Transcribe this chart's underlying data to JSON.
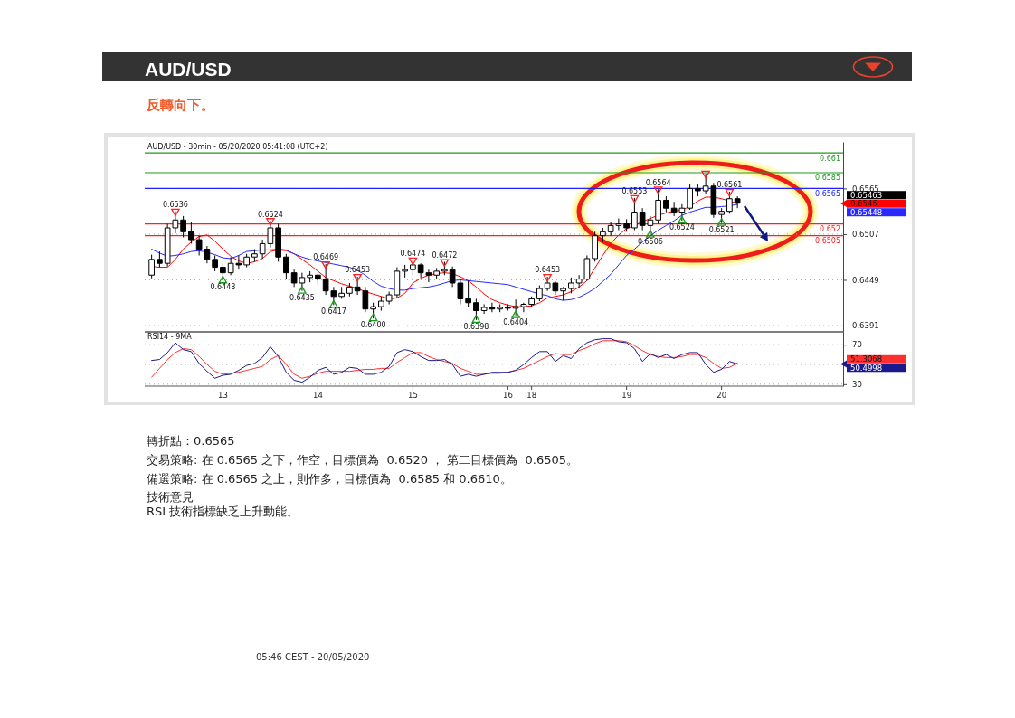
{
  "chart_data": [
    {
      "type": "candlestick",
      "title": "AUD/USD",
      "subtitle": "反轉向下。",
      "categories": [
        null,
        null,
        null,
        null,
        null,
        null,
        null,
        null,
        null,
        null,
        null,
        null,
        null,
        null,
        null,
        null,
        null,
        null,
        null,
        null,
        null,
        null,
        null,
        null,
        null,
        null,
        null,
        null,
        null,
        null,
        null,
        null,
        null,
        null,
        null,
        null,
        null,
        null,
        null,
        null,
        null,
        null,
        null,
        null,
        null,
        null,
        null,
        null,
        null,
        null,
        null,
        null,
        null,
        null,
        null,
        null,
        null,
        null,
        null,
        null,
        null,
        null,
        null,
        null,
        null,
        null,
        null,
        null,
        null,
        null,
        null,
        null,
        null,
        null,
        null
      ],
      "ohlc": [
        [
          0.6455,
          0.6481,
          0.6451,
          0.6475
        ],
        [
          0.6475,
          0.6485,
          0.6465,
          0.647
        ],
        [
          0.647,
          0.652,
          0.6466,
          0.6515
        ],
        [
          0.6515,
          0.6536,
          0.6508,
          0.6525
        ],
        [
          0.6525,
          0.653,
          0.6503,
          0.651
        ],
        [
          0.651,
          0.6522,
          0.6495,
          0.65
        ],
        [
          0.65,
          0.6505,
          0.648,
          0.6488
        ],
        [
          0.6488,
          0.6492,
          0.647,
          0.6475
        ],
        [
          0.6475,
          0.648,
          0.646,
          0.6465
        ],
        [
          0.6465,
          0.647,
          0.6448,
          0.6458
        ],
        [
          0.6458,
          0.6478,
          0.6455,
          0.647
        ],
        [
          0.647,
          0.648,
          0.6462,
          0.6468
        ],
        [
          0.6468,
          0.6482,
          0.6465,
          0.6478
        ],
        [
          0.6478,
          0.6488,
          0.6472,
          0.6482
        ],
        [
          0.6482,
          0.65,
          0.6476,
          0.6495
        ],
        [
          0.6495,
          0.6524,
          0.649,
          0.6515
        ],
        [
          0.6515,
          0.652,
          0.6472,
          0.6478
        ],
        [
          0.6478,
          0.6482,
          0.645,
          0.6458
        ],
        [
          0.6458,
          0.6462,
          0.644,
          0.6445
        ],
        [
          0.6445,
          0.6458,
          0.6435,
          0.6452
        ],
        [
          0.6452,
          0.646,
          0.6446,
          0.6455
        ],
        [
          0.6455,
          0.6458,
          0.6443,
          0.645
        ],
        [
          0.645,
          0.6469,
          0.643,
          0.6435
        ],
        [
          0.6435,
          0.644,
          0.6417,
          0.6428
        ],
        [
          0.6428,
          0.644,
          0.6425,
          0.6432
        ],
        [
          0.6432,
          0.6445,
          0.6428,
          0.644
        ],
        [
          0.644,
          0.6453,
          0.643,
          0.6435
        ],
        [
          0.6435,
          0.644,
          0.6408,
          0.6412
        ],
        [
          0.6412,
          0.642,
          0.64,
          0.6415
        ],
        [
          0.6415,
          0.6428,
          0.641,
          0.6422
        ],
        [
          0.6422,
          0.6434,
          0.6418,
          0.643
        ],
        [
          0.643,
          0.6465,
          0.6426,
          0.646
        ],
        [
          0.646,
          0.6468,
          0.6452,
          0.6462
        ],
        [
          0.6462,
          0.6474,
          0.6455,
          0.6468
        ],
        [
          0.6468,
          0.647,
          0.6452,
          0.6458
        ],
        [
          0.6458,
          0.6462,
          0.6446,
          0.6455
        ],
        [
          0.6455,
          0.6464,
          0.645,
          0.646
        ],
        [
          0.646,
          0.6472,
          0.6455,
          0.6462
        ],
        [
          0.6462,
          0.6466,
          0.644,
          0.6445
        ],
        [
          0.6445,
          0.645,
          0.6418,
          0.6425
        ],
        [
          0.6425,
          0.6448,
          0.6415,
          0.642
        ],
        [
          0.642,
          0.6425,
          0.6398,
          0.641
        ],
        [
          0.641,
          0.6418,
          0.6406,
          0.6414
        ],
        [
          0.6414,
          0.642,
          0.6408,
          0.6412
        ],
        [
          0.6412,
          0.6418,
          0.6408,
          0.6414
        ],
        [
          0.6414,
          0.6418,
          0.641,
          0.6413
        ],
        [
          0.6413,
          0.6424,
          0.6404,
          0.6415
        ],
        [
          0.6415,
          0.642,
          0.6408,
          0.6418
        ],
        [
          0.6418,
          0.6428,
          0.6414,
          0.6425
        ],
        [
          0.6425,
          0.6442,
          0.6422,
          0.6438
        ],
        [
          0.6438,
          0.6453,
          0.6435,
          0.6445
        ],
        [
          0.6445,
          0.6447,
          0.643,
          0.6435
        ],
        [
          0.6435,
          0.644,
          0.6423,
          0.6438
        ],
        [
          0.6438,
          0.6452,
          0.6432,
          0.6445
        ],
        [
          0.6445,
          0.6455,
          0.6438,
          0.645
        ],
        [
          0.645,
          0.648,
          0.6448,
          0.6476
        ],
        [
          0.6476,
          0.651,
          0.6472,
          0.6505
        ],
        [
          0.6505,
          0.6515,
          0.6497,
          0.651
        ],
        [
          0.651,
          0.6522,
          0.6505,
          0.6518
        ],
        [
          0.6518,
          0.6527,
          0.6512,
          0.652
        ],
        [
          0.652,
          0.6526,
          0.651,
          0.6515
        ],
        [
          0.6515,
          0.6553,
          0.6512,
          0.6535
        ],
        [
          0.6535,
          0.654,
          0.6512,
          0.6518
        ],
        [
          0.6518,
          0.653,
          0.6506,
          0.6525
        ],
        [
          0.6525,
          0.6564,
          0.652,
          0.655
        ],
        [
          0.655,
          0.6555,
          0.6535,
          0.654
        ],
        [
          0.654,
          0.6548,
          0.653,
          0.6535
        ],
        [
          0.6535,
          0.6545,
          0.6524,
          0.654
        ],
        [
          0.654,
          0.6571,
          0.6538,
          0.6565
        ],
        [
          0.6565,
          0.657,
          0.6555,
          0.6562
        ],
        [
          0.6562,
          0.6584,
          0.6558,
          0.6568
        ],
        [
          0.6568,
          0.6572,
          0.6528,
          0.6532
        ],
        [
          0.6532,
          0.654,
          0.6521,
          0.6536
        ],
        [
          0.6536,
          0.6561,
          0.6533,
          0.6552
        ],
        [
          0.6552,
          0.6555,
          0.654,
          0.65463
        ]
      ],
      "color": "#000000",
      "series": [
        {
          "type": "line",
          "color": "#ff0000",
          "values": [
            0.6466,
            0.6465,
            0.6465,
            0.6475,
            0.6488,
            0.6497,
            0.6504,
            0.6506,
            0.6498,
            0.6488,
            0.6479,
            0.6473,
            0.647,
            0.6472,
            0.6476,
            0.6485,
            0.6487,
            0.6486,
            0.6482,
            0.6475,
            0.6468,
            0.646,
            0.6452,
            0.6448,
            0.6444,
            0.6441,
            0.6438,
            0.6434,
            0.6431,
            0.6428,
            0.6425,
            0.6426,
            0.6432,
            0.6445,
            0.6451,
            0.6455,
            0.6457,
            0.6458,
            0.6457,
            0.6453,
            0.6448,
            0.644,
            0.6431,
            0.6424,
            0.642,
            0.6417,
            0.6415,
            0.6415,
            0.6416,
            0.642,
            0.6426,
            0.6428,
            0.643,
            0.6434,
            0.644,
            0.6448,
            0.6464,
            0.648,
            0.6495,
            0.6506,
            0.6514,
            0.6518,
            0.6523,
            0.6527,
            0.6531,
            0.6534,
            0.6536,
            0.6538,
            0.6542,
            0.6549,
            0.6554,
            0.6554,
            0.6552,
            0.6549,
            0.6546
          ]
        },
        {
          "type": "line",
          "color": "#2828ff",
          "values": [
            0.6488,
            0.6483,
            0.6479,
            0.648,
            0.6482,
            0.6485,
            0.6486,
            0.6484,
            0.6481,
            0.6477,
            0.6476,
            0.648,
            0.6485,
            0.6486,
            0.6487,
            0.6487,
            0.6488,
            0.6487,
            0.6482,
            0.6478,
            0.6475,
            0.6473,
            0.6471,
            0.6469,
            0.6467,
            0.6465,
            0.6461,
            0.6455,
            0.6447,
            0.6441,
            0.6438,
            0.6436,
            0.6436,
            0.6438,
            0.6439,
            0.644,
            0.6442,
            0.6445,
            0.6448,
            0.6449,
            0.6448,
            0.6447,
            0.6446,
            0.6445,
            0.6444,
            0.6443,
            0.644,
            0.6437,
            0.6434,
            0.6431,
            0.6429,
            0.6425,
            0.6423,
            0.6424,
            0.6427,
            0.6432,
            0.6438,
            0.6447,
            0.6456,
            0.6468,
            0.648,
            0.6488,
            0.6497,
            0.6505,
            0.6512,
            0.6518,
            0.6524,
            0.6531,
            0.6535,
            0.6538,
            0.6541,
            0.6541,
            0.6542,
            0.6543,
            0.65448
          ]
        },
        {
          "type": "scatter",
          "marker": "triangle",
          "color": "#ff2020",
          "values": [
            null,
            null,
            null,
            0.6536,
            null,
            null,
            null,
            null,
            null,
            null,
            null,
            null,
            null,
            null,
            null,
            0.6524,
            null,
            null,
            null,
            null,
            null,
            null,
            0.6469,
            null,
            null,
            null,
            0.6453,
            null,
            null,
            null,
            null,
            null,
            null,
            0.6474,
            null,
            null,
            null,
            0.6472,
            null,
            null,
            null,
            null,
            null,
            null,
            null,
            null,
            null,
            null,
            null,
            null,
            0.6453,
            null,
            null,
            null,
            null,
            null,
            null,
            null,
            null,
            null,
            null,
            0.6553,
            null,
            null,
            0.6564,
            null,
            null,
            null,
            null,
            null,
            0.6584,
            null,
            null,
            0.6561,
            null
          ],
          "value_labels": [
            null,
            null,
            null,
            "0.6536",
            null,
            null,
            null,
            null,
            null,
            null,
            null,
            null,
            null,
            null,
            null,
            "0.6524",
            null,
            null,
            null,
            null,
            null,
            null,
            "0.6469",
            null,
            null,
            null,
            "0.6453",
            null,
            null,
            null,
            null,
            null,
            null,
            "0.6474",
            null,
            null,
            null,
            "0.6472",
            null,
            null,
            null,
            null,
            null,
            null,
            null,
            null,
            null,
            null,
            null,
            null,
            "0.6453",
            null,
            null,
            null,
            null,
            null,
            null,
            null,
            null,
            null,
            null,
            "0.6553",
            null,
            null,
            "0.6564",
            null,
            null,
            null,
            null,
            null,
            null,
            null,
            null,
            "0.6561",
            null
          ]
        },
        {
          "type": "scatter",
          "marker": "triangle",
          "color": "#1a9a1a",
          "values": [
            null,
            null,
            null,
            null,
            null,
            null,
            null,
            null,
            null,
            0.6448,
            null,
            null,
            null,
            null,
            null,
            null,
            null,
            null,
            null,
            0.6435,
            null,
            null,
            null,
            0.6417,
            null,
            null,
            null,
            null,
            0.64,
            null,
            null,
            null,
            null,
            null,
            null,
            null,
            null,
            null,
            null,
            null,
            null,
            0.6398,
            null,
            null,
            null,
            null,
            0.6404,
            null,
            null,
            null,
            null,
            null,
            null,
            null,
            null,
            null,
            null,
            null,
            null,
            null,
            null,
            null,
            null,
            0.6506,
            null,
            null,
            null,
            0.6524,
            null,
            null,
            null,
            null,
            0.6521,
            null,
            null
          ],
          "value_labels": [
            null,
            null,
            null,
            null,
            null,
            null,
            null,
            null,
            null,
            "0.6448",
            null,
            null,
            null,
            null,
            null,
            null,
            null,
            null,
            null,
            "0.6435",
            null,
            null,
            null,
            "0.6417",
            null,
            null,
            null,
            null,
            "0.6400",
            null,
            null,
            null,
            null,
            null,
            null,
            null,
            null,
            null,
            null,
            null,
            null,
            "0.6398",
            null,
            null,
            null,
            null,
            "0.6404",
            null,
            null,
            null,
            null,
            null,
            null,
            null,
            null,
            null,
            null,
            null,
            null,
            null,
            null,
            null,
            null,
            "0.6506",
            null,
            null,
            null,
            "0.6524",
            null,
            null,
            null,
            null,
            "0.6521",
            null,
            null
          ]
        }
      ],
      "ylim": [
        0.6383,
        0.6624
      ],
      "yticks": [
        0.6565,
        0.6507,
        0.6449,
        0.6391
      ],
      "grid": "y",
      "ref_lines": [
        {
          "axis": "y",
          "value": 0.661,
          "label": "0.661",
          "color": "#1f9a1f"
        },
        {
          "axis": "y",
          "value": 0.6585,
          "label": "0.6585",
          "color": "#1f9a1f"
        },
        {
          "axis": "y",
          "value": 0.6565,
          "label": "0.6565",
          "color": "#2020ff"
        },
        {
          "axis": "y",
          "value": 0.652,
          "label": "0.652",
          "color": "#ff2020"
        },
        {
          "axis": "y",
          "value": 0.6505,
          "label": "0.6505",
          "color": "#ff2020"
        }
      ],
      "annotations": [
        "AUD/USD - 30min - 05/20/2020 05:41:08 (UTC+2)",
        "0.65463",
        "0.6546",
        "0.65448"
      ]
    },
    {
      "type": "line",
      "title": "RSI14 - 9MA",
      "categories": [
        null,
        null,
        null,
        null,
        null,
        null,
        null,
        null,
        null,
        "13",
        null,
        null,
        null,
        null,
        null,
        null,
        null,
        null,
        null,
        null,
        null,
        "14",
        null,
        null,
        null,
        null,
        null,
        null,
        null,
        null,
        null,
        null,
        null,
        "15",
        null,
        null,
        null,
        null,
        null,
        null,
        null,
        null,
        null,
        null,
        null,
        "16",
        null,
        null,
        "18",
        null,
        null,
        null,
        null,
        null,
        null,
        null,
        null,
        null,
        null,
        null,
        "19",
        null,
        null,
        null,
        null,
        null,
        null,
        null,
        null,
        null,
        null,
        null,
        "20",
        null,
        null
      ],
      "series": [
        {
          "color": "#ff3030",
          "values": [
            37,
            46,
            55,
            62,
            66,
            65,
            58,
            50,
            43,
            40,
            41,
            42,
            44,
            46,
            48,
            55,
            59,
            50,
            40,
            36,
            38,
            41,
            43,
            43,
            43,
            43,
            44,
            45,
            45,
            46,
            46,
            52,
            57,
            62,
            62,
            58,
            55,
            53,
            51,
            46,
            43,
            40,
            40,
            41,
            41,
            42,
            44,
            46,
            50,
            54,
            58,
            61,
            60,
            60,
            64,
            67,
            71,
            74,
            74,
            74,
            73,
            69,
            64,
            60,
            58,
            57,
            57,
            58,
            60,
            60,
            57,
            51,
            46,
            47,
            51.3068
          ]
        },
        {
          "color": "#1a1a8c",
          "values": [
            54,
            55,
            62,
            72,
            65,
            63,
            51,
            43,
            36,
            39,
            40,
            44,
            49,
            51,
            57,
            68,
            58,
            42,
            34,
            32,
            37,
            44,
            47,
            40,
            42,
            47,
            46,
            40,
            40,
            42,
            48,
            62,
            65,
            63,
            58,
            54,
            54,
            55,
            50,
            38,
            40,
            38,
            40,
            42,
            42,
            42,
            44,
            50,
            57,
            63,
            63,
            53,
            59,
            56,
            66,
            72,
            75,
            76,
            76,
            73,
            72,
            66,
            53,
            61,
            57,
            60,
            56,
            60,
            62,
            62,
            50,
            42,
            45,
            53,
            50.4998
          ]
        }
      ],
      "ylim": [
        28,
        83
      ],
      "yticks": [
        70,
        {
          "value": 50,
          "label": null
        },
        30
      ],
      "grid": "y",
      "annotations": [
        "51.3068",
        "50.4998"
      ]
    },
    {
      "type": "other",
      "annotations": [
        "轉折點：0.6565",
        "交易策略: 在 0.6565 之下，作空，目標價為  0.6520 ， 第二目標價為  0.6505。",
        "備選策略: 在 0.6565 之上，則作多，目標價為  0.6585 和 0.6610。",
        "技術意見",
        "RSI 技術指標缺乏上升動能。",
        "05:46 CEST - 20/05/2020"
      ]
    }
  ]
}
